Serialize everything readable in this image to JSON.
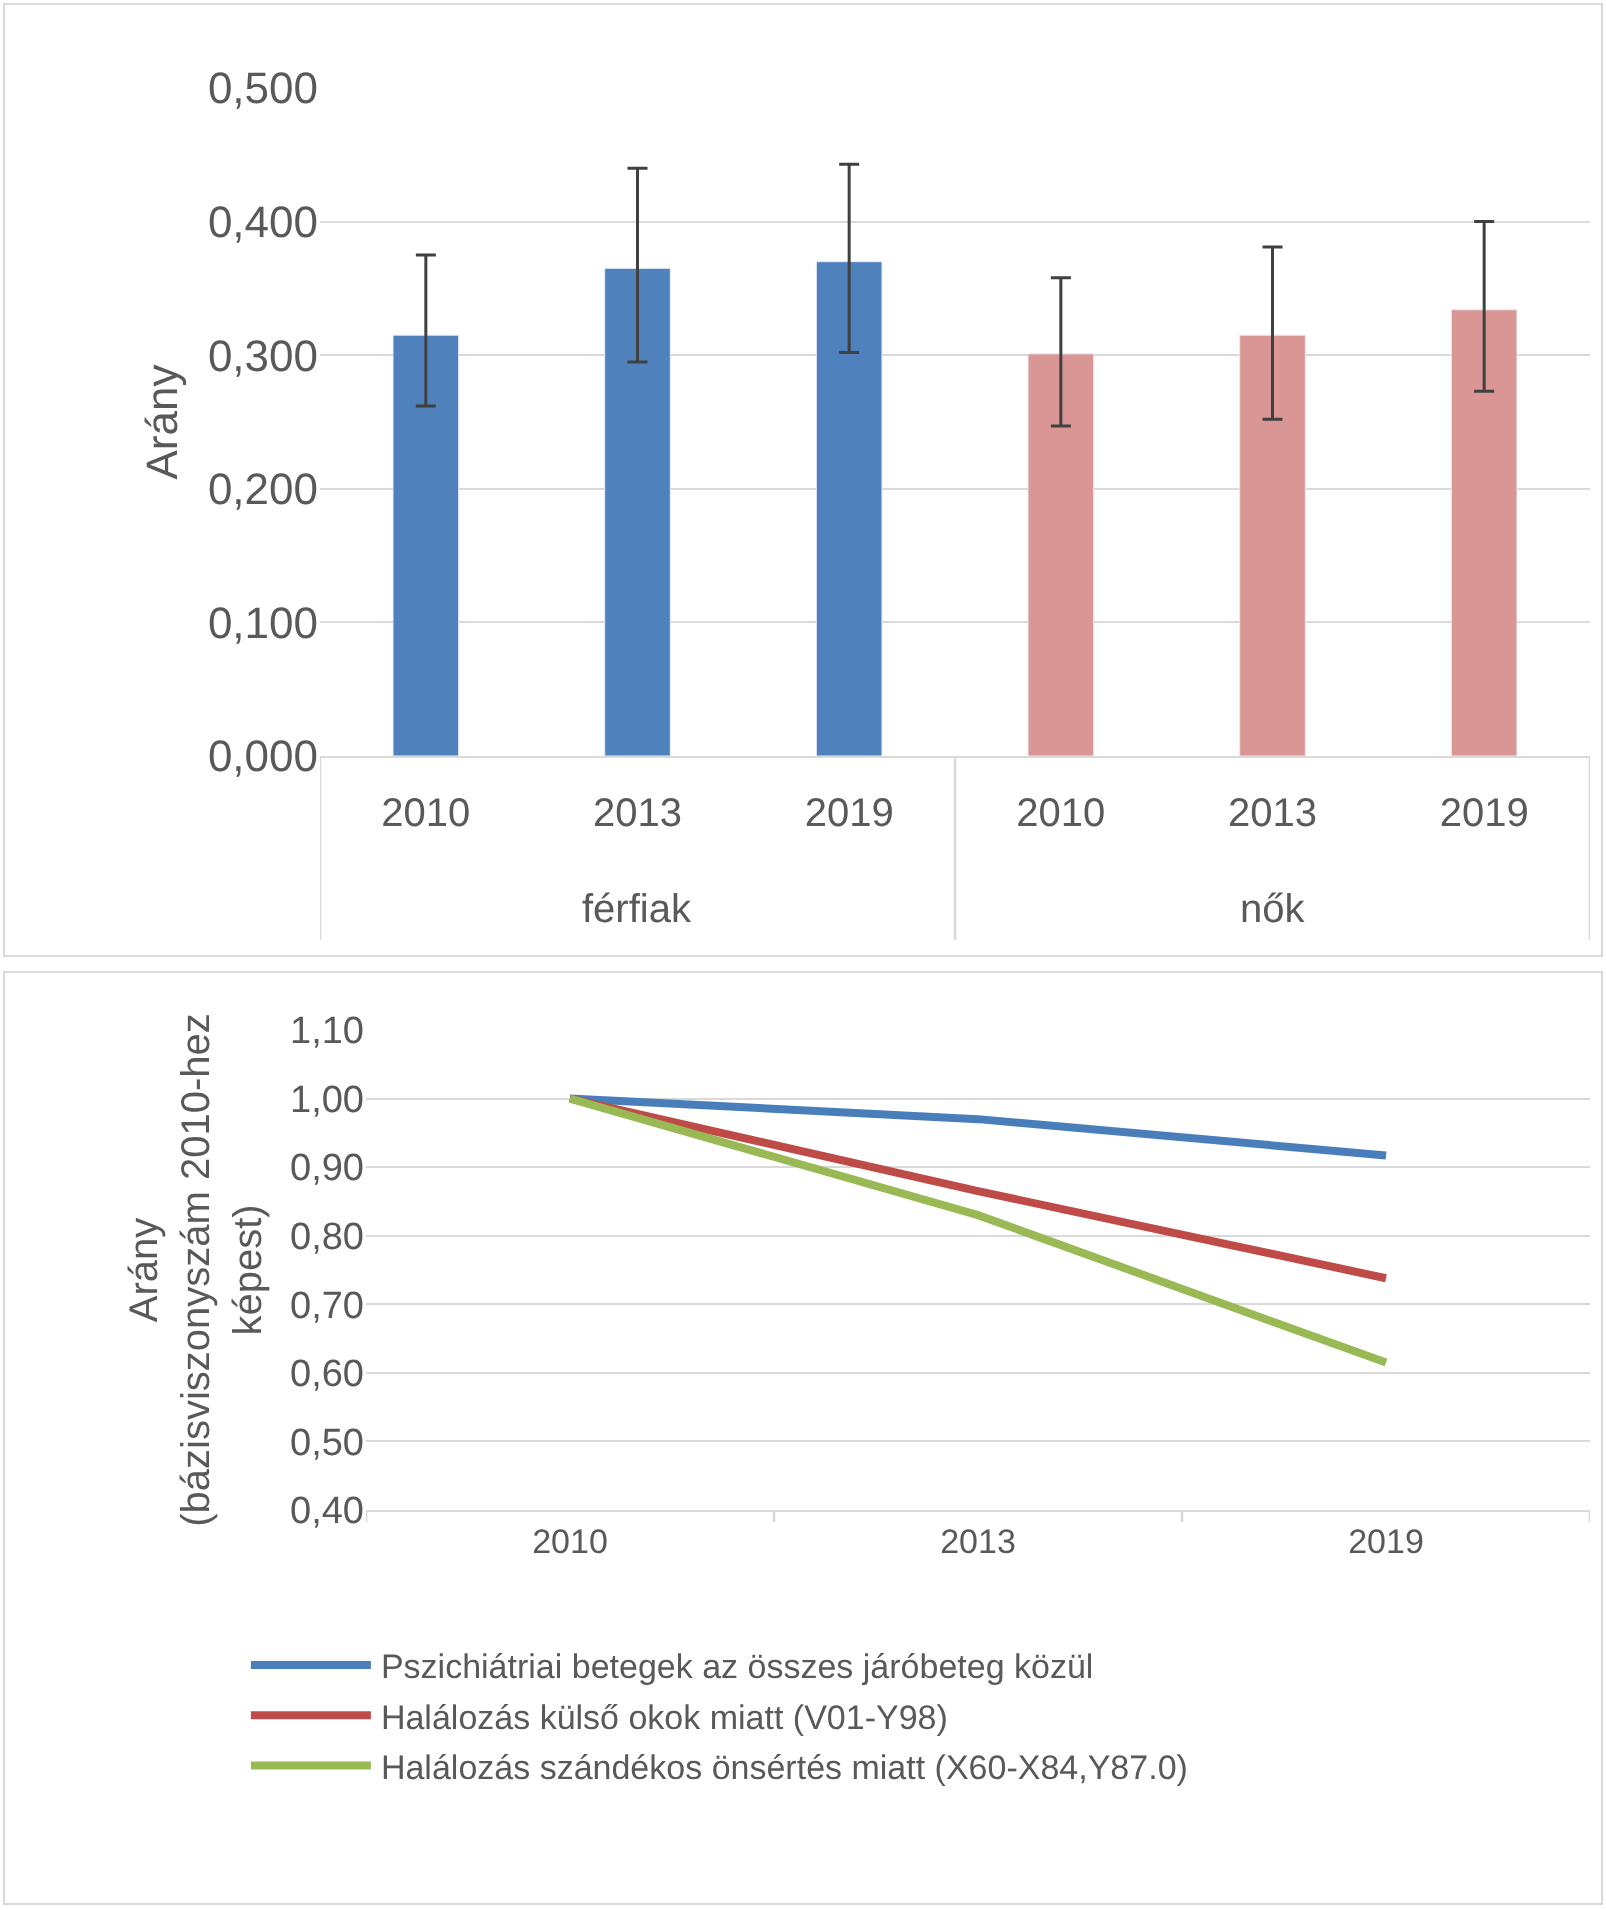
{
  "chart_data": [
    {
      "type": "bar",
      "ylabel": "Arány",
      "categories": [
        "2010",
        "2013",
        "2019",
        "2010",
        "2013",
        "2019"
      ],
      "annotations": [
        "férfiak",
        "nők"
      ],
      "values": [
        0.315,
        0.365,
        0.37,
        0.301,
        0.315,
        0.334
      ],
      "colors": [
        "#4f81bd",
        "#4f81bd",
        "#4f81bd",
        "#d99694",
        "#d99694",
        "#d99694"
      ],
      "errors": [
        [
          0.262,
          0.375
        ],
        [
          0.295,
          0.44
        ],
        [
          0.302,
          0.443
        ],
        [
          0.247,
          0.358
        ],
        [
          0.252,
          0.381
        ],
        [
          0.273,
          0.4
        ]
      ],
      "ylim": [
        0,
        0.5
      ],
      "yticks": [
        {
          "value": 0,
          "label": "0,000"
        },
        {
          "value": 0.1,
          "label": "0,100"
        },
        {
          "value": 0.2,
          "label": "0,200"
        },
        {
          "value": 0.3,
          "label": "0,300"
        },
        {
          "value": 0.4,
          "label": "0,400"
        },
        {
          "value": 0.5,
          "label": "0,500"
        }
      ],
      "grid": "y",
      "legend": false
    },
    {
      "type": "line",
      "ylabel": "Arány\n(bázisviszonyszám 2010-hez\nképest)",
      "categories": [
        "2010",
        "2013",
        "2019"
      ],
      "series": [
        {
          "name": "Pszichiátriai betegek az összes járóbeteg közül",
          "color": "#4a7ebb",
          "values": [
            1.0,
            0.97,
            0.917
          ]
        },
        {
          "name": "Halálozás külső okok miatt (V01-Y98)",
          "color": "#be4b48",
          "values": [
            1.0,
            0.865,
            0.738
          ]
        },
        {
          "name": "Halálozás szándékos önsértés miatt (X60-X84,Y87.0)",
          "color": "#98b954",
          "values": [
            1.0,
            0.83,
            0.615
          ]
        }
      ],
      "ylim": [
        0.4,
        1.1
      ],
      "yticks": [
        {
          "value": 0.4,
          "label": "0,40"
        },
        {
          "value": 0.5,
          "label": "0,50"
        },
        {
          "value": 0.6,
          "label": "0,60"
        },
        {
          "value": 0.7,
          "label": "0,70"
        },
        {
          "value": 0.8,
          "label": "0,80"
        },
        {
          "value": 0.9,
          "label": "0,90"
        },
        {
          "value": 1.0,
          "label": "1,00"
        },
        {
          "value": 1.1,
          "label": "1,10"
        }
      ],
      "grid": "y",
      "legend": "bottom",
      "marker": "none",
      "line_style": "solid"
    }
  ]
}
